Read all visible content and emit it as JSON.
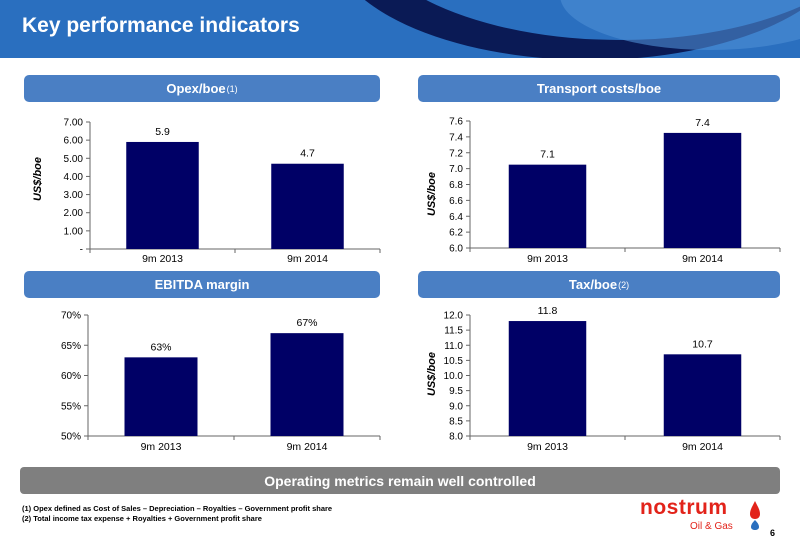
{
  "header": {
    "title": "Key performance indicators"
  },
  "colors": {
    "bar": "#000066",
    "pill": "#4a7fc4",
    "header": "#2a6fbf",
    "footer_bar": "#7f7f7f",
    "logo": "#e2231a"
  },
  "panels": {
    "opex": {
      "title": "Opex/boe",
      "sup": "(1)"
    },
    "transport": {
      "title": "Transport costs/boe",
      "sup": ""
    },
    "ebitda": {
      "title": "EBITDA margin",
      "sup": ""
    },
    "tax": {
      "title": "Tax/boe",
      "sup": "(2)"
    }
  },
  "footer": {
    "conclusion": "Operating metrics remain well controlled",
    "note1": "(1) Opex defined as Cost of Sales – Depreciation – Royalties – Government profit share",
    "note2": "(2) Total income tax expense + Royalties + Government profit share",
    "page_number": "6"
  },
  "logo": {
    "name": "nostrum",
    "subtitle": "Oil & Gas",
    "icon": "drop-flame-icon"
  },
  "chart_data": [
    {
      "id": "opex",
      "type": "bar",
      "title": "Opex/boe(1)",
      "ylabel": "US$/boe",
      "categories": [
        "9m 2013",
        "9m 2014"
      ],
      "values": [
        5.9,
        4.7
      ],
      "value_labels": [
        "5.9",
        "4.7"
      ],
      "ylim": [
        0,
        7
      ],
      "yticks": [
        0,
        1,
        2,
        3,
        4,
        5,
        6,
        7
      ],
      "ytick_labels": [
        "-",
        "1.00",
        "2.00",
        "3.00",
        "4.00",
        "5.00",
        "6.00",
        "7.00"
      ]
    },
    {
      "id": "transport",
      "type": "bar",
      "title": "Transport costs/boe",
      "ylabel": "US$/boe",
      "categories": [
        "9m 2013",
        "9m 2014"
      ],
      "values": [
        7.05,
        7.45
      ],
      "value_labels": [
        "7.1",
        "7.4"
      ],
      "ylim": [
        6.0,
        7.6
      ],
      "yticks": [
        6.0,
        6.2,
        6.4,
        6.6,
        6.8,
        7.0,
        7.2,
        7.4,
        7.6
      ],
      "ytick_labels": [
        "6.0",
        "6.2",
        "6.4",
        "6.6",
        "6.8",
        "7.0",
        "7.2",
        "7.4",
        "7.6"
      ]
    },
    {
      "id": "ebitda",
      "type": "bar",
      "title": "EBITDA margin",
      "ylabel": "",
      "categories": [
        "9m 2013",
        "9m 2014"
      ],
      "values": [
        63,
        67
      ],
      "value_labels": [
        "63%",
        "67%"
      ],
      "ylim": [
        50,
        70
      ],
      "yticks": [
        50,
        55,
        60,
        65,
        70
      ],
      "ytick_labels": [
        "50%",
        "55%",
        "60%",
        "65%",
        "70%"
      ]
    },
    {
      "id": "tax",
      "type": "bar",
      "title": "Tax/boe(2)",
      "ylabel": "US$/boe",
      "categories": [
        "9m 2013",
        "9m 2014"
      ],
      "values": [
        11.8,
        10.7
      ],
      "value_labels": [
        "11.8",
        "10.7"
      ],
      "ylim": [
        8.0,
        12.0
      ],
      "yticks": [
        8.0,
        8.5,
        9.0,
        9.5,
        10.0,
        10.5,
        11.0,
        11.5,
        12.0
      ],
      "ytick_labels": [
        "8.0",
        "8.5",
        "9.0",
        "9.5",
        "10.0",
        "10.5",
        "11.0",
        "11.5",
        "12.0"
      ]
    }
  ]
}
